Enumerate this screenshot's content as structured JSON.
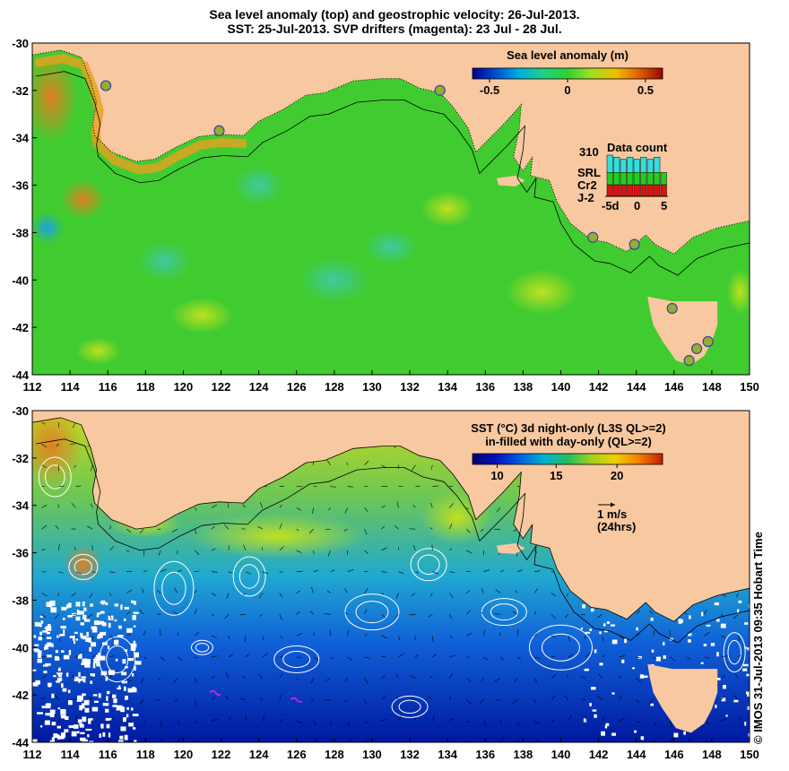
{
  "header": {
    "line1": "Sea level anomaly (top) and geostrophic velocity: 26-Jul-2013.",
    "line2": "SST: 25-Jul-2013. SVP drifters (magenta): 23 Jul - 28 Jul."
  },
  "axes": {
    "x_ticks": [
      "112",
      "114",
      "116",
      "118",
      "120",
      "122",
      "124",
      "126",
      "128",
      "130",
      "132",
      "134",
      "136",
      "138",
      "140",
      "142",
      "144",
      "146",
      "148",
      "150"
    ],
    "y_ticks": [
      "-30",
      "-32",
      "-34",
      "-36",
      "-38",
      "-40",
      "-42",
      "-44"
    ],
    "lon_range": [
      112,
      150
    ],
    "lat_range": [
      -44,
      -30
    ]
  },
  "top_panel": {
    "colorbar_title": "Sea level anomaly (m)",
    "colorbar_ticks": [
      "-0.5",
      "0",
      "0.5"
    ],
    "data_count": {
      "title": "Data count",
      "max_label": "310",
      "series": [
        {
          "name": "SRL",
          "color": "#30e0e0"
        },
        {
          "name": "Cr2",
          "color": "#20d020"
        },
        {
          "name": "J-2",
          "color": "#e01010"
        }
      ],
      "x_ticks": [
        "-5d",
        "0",
        "5"
      ]
    },
    "tide_gauges": [
      [
        115.9,
        -31.8
      ],
      [
        121.9,
        -33.7
      ],
      [
        133.6,
        -32.0
      ],
      [
        141.7,
        -38.2
      ],
      [
        143.9,
        -38.5
      ],
      [
        145.9,
        -41.2
      ],
      [
        147.2,
        -42.9
      ],
      [
        147.8,
        -42.6
      ],
      [
        146.8,
        -43.4
      ]
    ]
  },
  "bottom_panel": {
    "colorbar_title_line1": "SST (°C)  3d night-only (L3S QL>=2)",
    "colorbar_title_line2": "in-filled with day-only (QL>=2)",
    "colorbar_ticks": [
      "10",
      "15",
      "20"
    ],
    "velocity_scale_label": "1 m/s",
    "velocity_scale_sub": "(24hrs)",
    "drifters": [
      [
        121.7,
        -41.9
      ],
      [
        126.0,
        -42.2
      ]
    ]
  },
  "credit": "© IMOS 31-Jul-2013 09:35 Hobart Time",
  "colors": {
    "land": "#f8c8a0",
    "slaScale": [
      "#000090",
      "#0050d0",
      "#00b0e0",
      "#20d080",
      "#30d030",
      "#a0e020",
      "#f0c000",
      "#e06000",
      "#a00000"
    ],
    "sstScale": [
      "#000070",
      "#0010c0",
      "#0060e0",
      "#00b0d0",
      "#20c060",
      "#a0d020",
      "#f0d000",
      "#f08000",
      "#c02000"
    ],
    "slaBaseColor": "#40cc30",
    "coastlineColor": "#000000",
    "depthContourColor": "#000000"
  }
}
